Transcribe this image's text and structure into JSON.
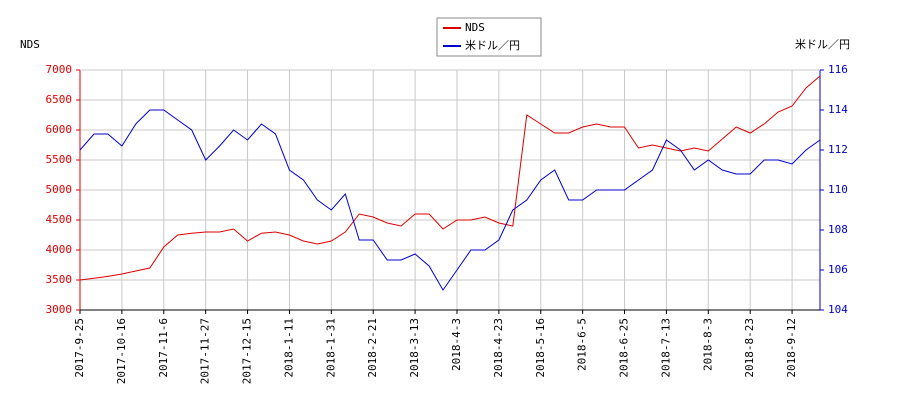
{
  "chart_data": {
    "type": "line",
    "y_label": "NDS",
    "y2_label": "米ドル／円",
    "categories": [
      "2017-9-25",
      null,
      null,
      "2017-10-16",
      null,
      null,
      "2017-11-6",
      null,
      null,
      "2017-11-27",
      null,
      null,
      "2017-12-15",
      null,
      null,
      "2018-1-11",
      null,
      null,
      "2018-1-31",
      null,
      null,
      "2018-2-21",
      null,
      null,
      "2018-3-13",
      null,
      null,
      "2018-4-3",
      null,
      null,
      "2018-4-23",
      null,
      null,
      "2018-5-16",
      null,
      null,
      "2018-6-5",
      null,
      null,
      "2018-6-25",
      null,
      null,
      "2018-7-13",
      null,
      null,
      "2018-8-3",
      null,
      null,
      "2018-8-23",
      null,
      null,
      "2018-9-12",
      null,
      null
    ],
    "series": [
      {
        "name": "NDS",
        "color": "#dd0000",
        "axis": "y",
        "values": [
          3500,
          3530,
          3560,
          3600,
          3650,
          3700,
          4050,
          4250,
          4280,
          4300,
          4300,
          4350,
          4150,
          4280,
          4300,
          4250,
          4150,
          4100,
          4150,
          4300,
          4600,
          4550,
          4450,
          4400,
          4600,
          4600,
          4350,
          4500,
          4500,
          4550,
          4450,
          4400,
          6250,
          6100,
          5950,
          5950,
          6050,
          6100,
          6050,
          6050,
          5700,
          5750,
          5700,
          5650,
          5700,
          5650,
          5850,
          6050,
          5950,
          6100,
          6300,
          6400,
          6700,
          6900
        ]
      },
      {
        "name": "米ドル／円",
        "color": "#0000cc",
        "axis": "y2",
        "values": [
          112.0,
          112.8,
          112.8,
          112.2,
          113.3,
          114.0,
          114.0,
          113.5,
          113.0,
          111.5,
          112.2,
          113.0,
          112.5,
          113.3,
          112.8,
          111.0,
          110.5,
          109.5,
          109.0,
          109.8,
          107.5,
          107.5,
          106.5,
          106.5,
          106.8,
          106.2,
          105.0,
          106.0,
          107.0,
          107.0,
          107.5,
          109.0,
          109.5,
          110.5,
          111.0,
          109.5,
          109.5,
          110.0,
          110.0,
          110.0,
          110.5,
          111.0,
          112.5,
          112.0,
          111.0,
          111.5,
          111.0,
          110.8,
          110.8,
          111.5,
          111.5,
          111.3,
          112.0,
          112.5
        ]
      }
    ],
    "ylim": [
      3000,
      7000
    ],
    "yticks": [
      3000,
      3500,
      4000,
      4500,
      5000,
      5500,
      6000,
      6500,
      7000
    ],
    "y2lim": [
      104,
      116
    ],
    "y2ticks": [
      104,
      106,
      108,
      110,
      112,
      114,
      116
    ],
    "y_tick_color": "#dd0000",
    "y2_tick_color": "#0000cc",
    "grid": true,
    "legend": "top"
  }
}
